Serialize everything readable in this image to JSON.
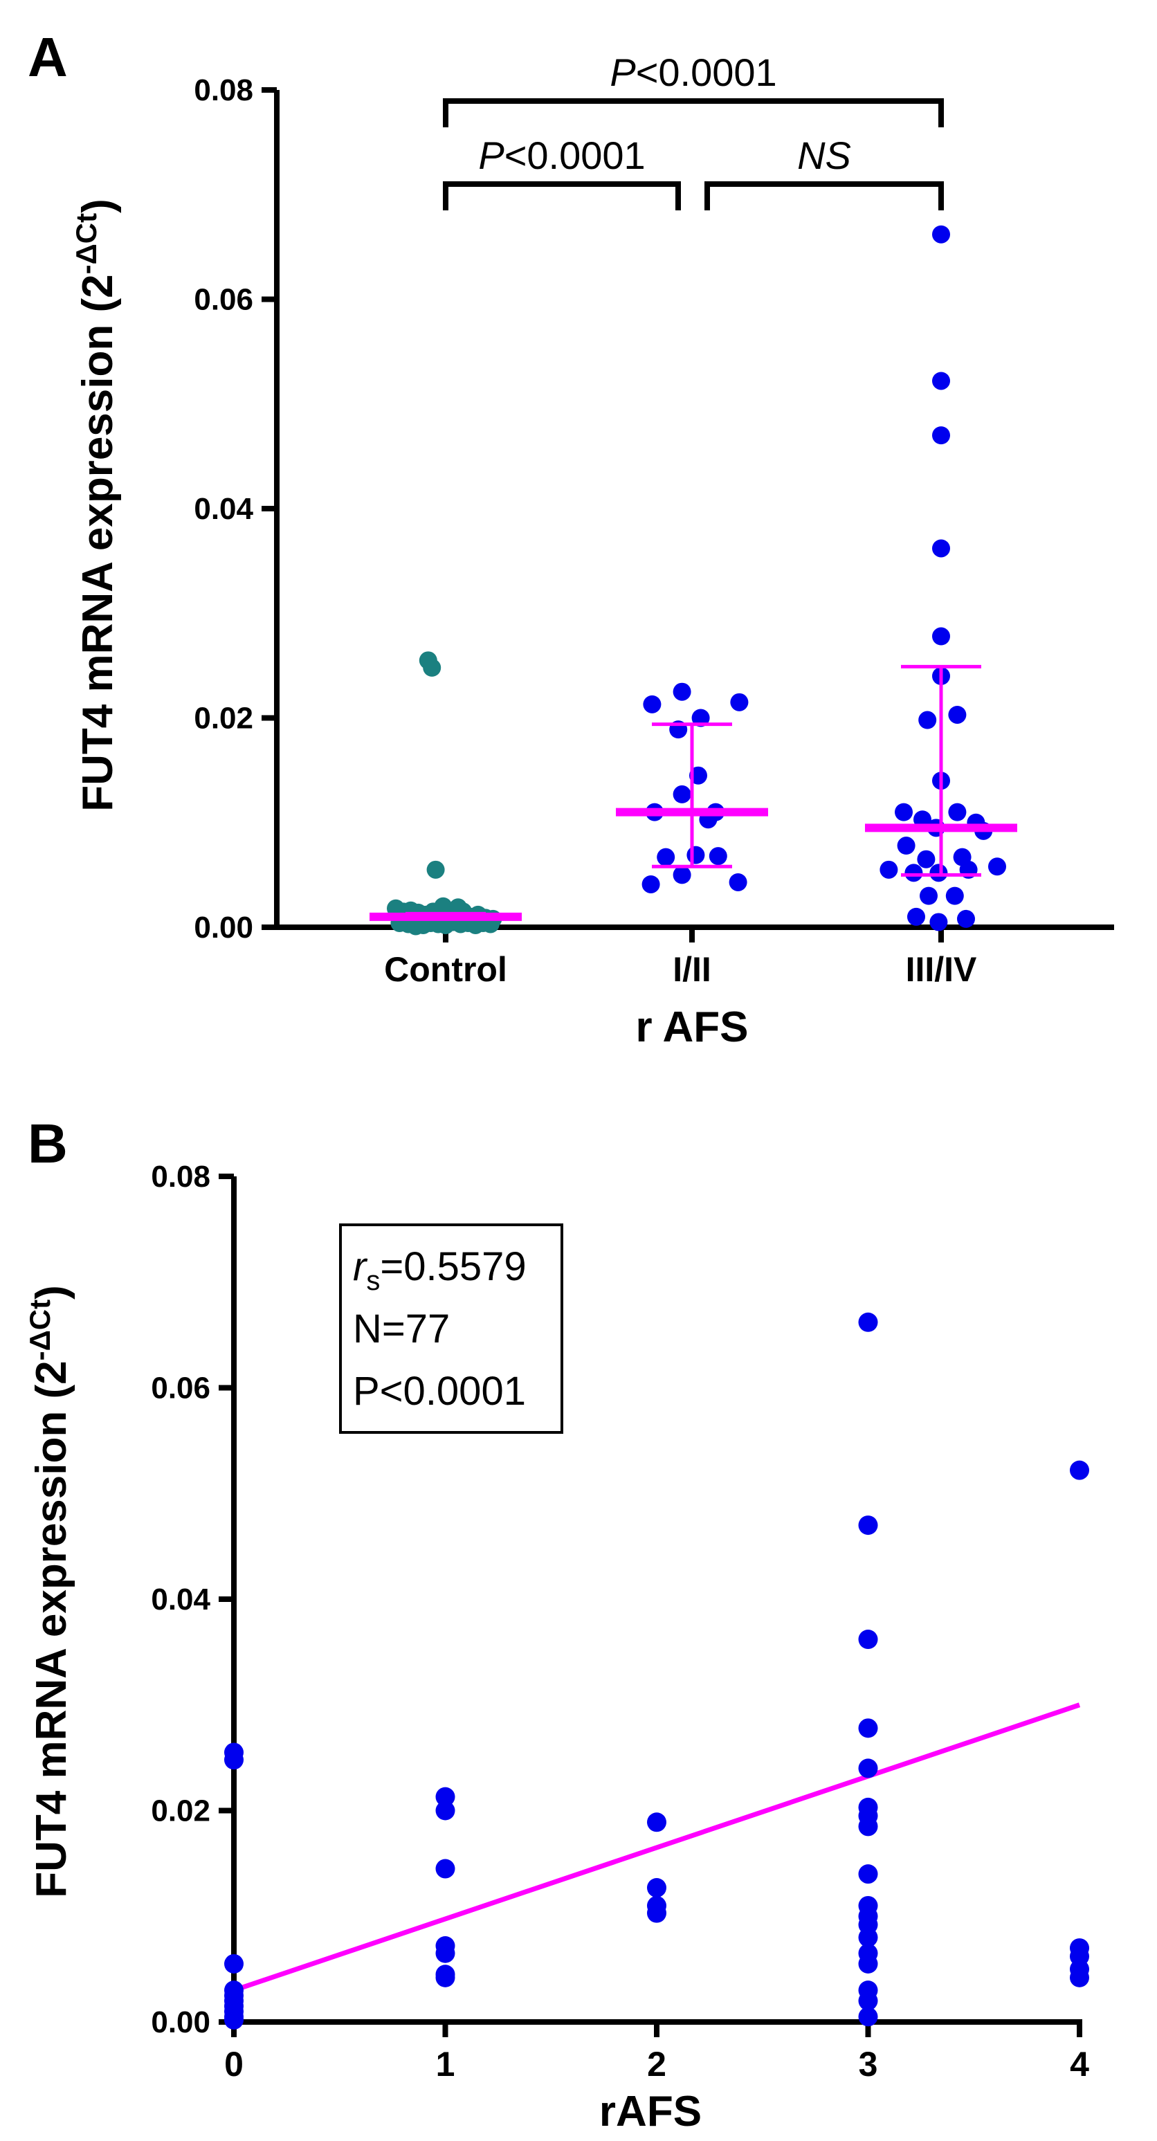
{
  "chart_data": [
    {
      "panel": "A",
      "type": "scatter",
      "subtype": "dot-plot-median-iqr",
      "xlabel": "r AFS",
      "ylabel": "FUT4 mRNA expression (2",
      "ylabel_sup": "-ΔCt",
      "ylabel_close": ")",
      "ylim": [
        0,
        0.08
      ],
      "yticks": [
        0,
        0.02,
        0.04,
        0.06,
        0.08
      ],
      "ytick_labels": [
        "0.00",
        "0.02",
        "0.04",
        "0.06",
        "0.08"
      ],
      "categories": [
        "Control",
        "I/II",
        "III/IV"
      ],
      "series": [
        {
          "name": "Control",
          "color": "#1b8080",
          "points": [
            [
              -0.14,
              0.0255
            ],
            [
              -0.11,
              0.0248
            ],
            [
              -0.08,
              0.0055
            ],
            [
              -0.4,
              0.0018
            ],
            [
              -0.34,
              0.0015
            ],
            [
              -0.28,
              0.0016
            ],
            [
              -0.22,
              0.0014
            ],
            [
              -0.16,
              0.0012
            ],
            [
              -0.1,
              0.0015
            ],
            [
              -0.04,
              0.001
            ],
            [
              0.02,
              0.0013
            ],
            [
              0.08,
              0.0012
            ],
            [
              0.14,
              0.0015
            ],
            [
              0.2,
              0.001
            ],
            [
              0.26,
              0.0012
            ],
            [
              0.32,
              0.0009
            ],
            [
              0.38,
              0.0008
            ],
            [
              -0.37,
              0.0004
            ],
            [
              -0.3,
              0.0003
            ],
            [
              -0.24,
              0.0001
            ],
            [
              -0.18,
              0.0002
            ],
            [
              -0.12,
              0.0004
            ],
            [
              -0.06,
              0.0003
            ],
            [
              0.0,
              0.0002
            ],
            [
              0.06,
              0.0005
            ],
            [
              0.12,
              0.0003
            ],
            [
              0.18,
              0.0004
            ],
            [
              0.24,
              0.0002
            ],
            [
              0.3,
              0.0004
            ],
            [
              0.36,
              0.0003
            ],
            [
              -0.02,
              0.002
            ],
            [
              0.1,
              0.0019
            ]
          ],
          "median": 0.001,
          "q1": 0.0008,
          "q3": 0.0013
        },
        {
          "name": "I/II",
          "color": "#0000ee",
          "points": [
            [
              -0.32,
              0.0213
            ],
            [
              -0.08,
              0.0225
            ],
            [
              0.38,
              0.0215
            ],
            [
              0.07,
              0.02
            ],
            [
              -0.11,
              0.0189
            ],
            [
              0.05,
              0.0145
            ],
            [
              -0.3,
              0.011
            ],
            [
              -0.08,
              0.0127
            ],
            [
              0.19,
              0.011
            ],
            [
              0.13,
              0.0103
            ],
            [
              -0.21,
              0.0067
            ],
            [
              0.03,
              0.0069
            ],
            [
              0.21,
              0.0068
            ],
            [
              -0.08,
              0.005
            ],
            [
              -0.33,
              0.0041
            ],
            [
              0.37,
              0.0043
            ]
          ],
          "median": 0.011,
          "q1": 0.0058,
          "q3": 0.0194
        },
        {
          "name": "III/IV",
          "color": "#0000ee",
          "points": [
            [
              0.0,
              0.0662
            ],
            [
              0.0,
              0.0522
            ],
            [
              0.0,
              0.047
            ],
            [
              0.0,
              0.0362
            ],
            [
              0.0,
              0.0278
            ],
            [
              0.0,
              0.024
            ],
            [
              0.13,
              0.0203
            ],
            [
              -0.11,
              0.0198
            ],
            [
              0.0,
              0.014
            ],
            [
              -0.3,
              0.011
            ],
            [
              0.13,
              0.011
            ],
            [
              -0.15,
              0.0103
            ],
            [
              0.28,
              0.01
            ],
            [
              -0.04,
              0.0095
            ],
            [
              0.34,
              0.0092
            ],
            [
              -0.28,
              0.0078
            ],
            [
              -0.12,
              0.0065
            ],
            [
              0.17,
              0.0067
            ],
            [
              -0.42,
              0.0055
            ],
            [
              -0.22,
              0.0052
            ],
            [
              -0.02,
              0.0052
            ],
            [
              0.22,
              0.0055
            ],
            [
              0.45,
              0.0058
            ],
            [
              -0.1,
              0.003
            ],
            [
              0.11,
              0.003
            ],
            [
              -0.2,
              0.001
            ],
            [
              0.2,
              0.0008
            ],
            [
              -0.02,
              0.0005
            ]
          ],
          "median": 0.0095,
          "q1": 0.005,
          "q3": 0.0249
        }
      ],
      "comparisons": [
        {
          "from": "Control",
          "to": "III/IV",
          "label": "P<0.0001"
        },
        {
          "from": "Control",
          "to": "I/II",
          "label": "P<0.0001"
        },
        {
          "from": "I/II",
          "to": "III/IV",
          "label": "NS"
        }
      ],
      "median_color": "#ff00ff"
    },
    {
      "panel": "B",
      "type": "scatter",
      "xlabel": "rAFS",
      "ylabel": "FUT4 mRNA expression (2",
      "ylabel_sup": "-ΔCt",
      "ylabel_close": ")",
      "xlim": [
        0,
        4
      ],
      "xticks": [
        0,
        1,
        2,
        3,
        4
      ],
      "xtick_labels": [
        "0",
        "1",
        "2",
        "3",
        "4"
      ],
      "ylim": [
        0,
        0.08
      ],
      "yticks": [
        0,
        0.02,
        0.04,
        0.06,
        0.08
      ],
      "ytick_labels": [
        "0.00",
        "0.02",
        "0.04",
        "0.06",
        "0.08"
      ],
      "point_color": "#0000ee",
      "points": [
        [
          0,
          0.0255
        ],
        [
          0,
          0.0248
        ],
        [
          0,
          0.0055
        ],
        [
          0,
          0.003
        ],
        [
          0,
          0.0025
        ],
        [
          0,
          0.002
        ],
        [
          0,
          0.0015
        ],
        [
          0,
          0.001
        ],
        [
          0,
          0.0005
        ],
        [
          0,
          0.0002
        ],
        [
          1,
          0.0213
        ],
        [
          1,
          0.02
        ],
        [
          1,
          0.0145
        ],
        [
          1,
          0.0072
        ],
        [
          1,
          0.0065
        ],
        [
          1,
          0.0045
        ],
        [
          1,
          0.0042
        ],
        [
          2,
          0.0189
        ],
        [
          2,
          0.0127
        ],
        [
          2,
          0.011
        ],
        [
          2,
          0.0103
        ],
        [
          3,
          0.0662
        ],
        [
          3,
          0.047
        ],
        [
          3,
          0.0362
        ],
        [
          3,
          0.0278
        ],
        [
          3,
          0.024
        ],
        [
          3,
          0.0203
        ],
        [
          3,
          0.0195
        ],
        [
          3,
          0.0185
        ],
        [
          3,
          0.014
        ],
        [
          3,
          0.011
        ],
        [
          3,
          0.01
        ],
        [
          3,
          0.0092
        ],
        [
          3,
          0.008
        ],
        [
          3,
          0.0065
        ],
        [
          3,
          0.0055
        ],
        [
          3,
          0.003
        ],
        [
          3,
          0.002
        ],
        [
          3,
          0.0005
        ],
        [
          4,
          0.0522
        ],
        [
          4,
          0.007
        ],
        [
          4,
          0.0062
        ],
        [
          4,
          0.005
        ],
        [
          4,
          0.0042
        ]
      ],
      "fit_line": {
        "color": "#ff00ff",
        "x": [
          0,
          4
        ],
        "y": [
          0.003,
          0.03
        ]
      },
      "stats": {
        "rs_symbol": "r",
        "rs_sub": "s",
        "rs_value": "=0.5579",
        "n": "N=77",
        "p": "P<0.0001"
      }
    }
  ]
}
